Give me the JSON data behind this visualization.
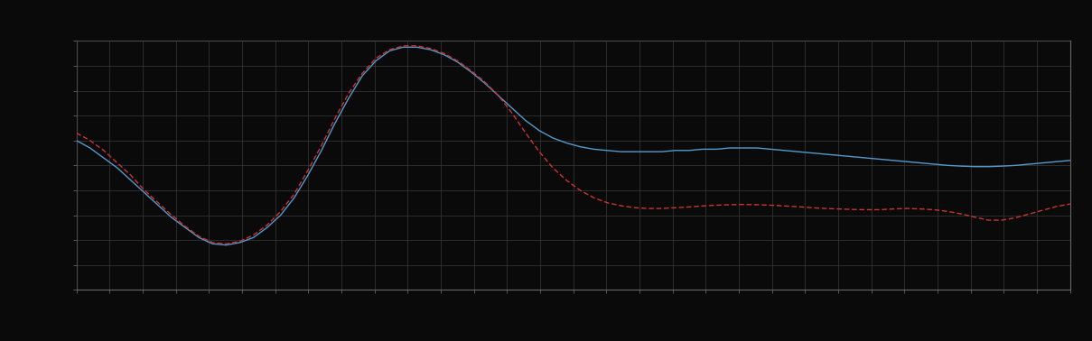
{
  "background_color": "#0a0a0a",
  "plot_bg_color": "#0a0a0a",
  "grid_color": "#3a3a3a",
  "axis_color": "#666666",
  "tick_color": "#666666",
  "figsize": [
    12.09,
    3.78
  ],
  "dpi": 100,
  "xlim": [
    0,
    365
  ],
  "ylim": [
    0,
    10
  ],
  "ytick_count": 10,
  "xticks_count": 30,
  "blue_line_color": "#5599cc",
  "red_line_color": "#cc3333",
  "line_width": 1.0,
  "blue_x": [
    0,
    5,
    10,
    15,
    20,
    25,
    30,
    35,
    40,
    45,
    50,
    55,
    60,
    65,
    70,
    75,
    80,
    85,
    90,
    95,
    100,
    105,
    110,
    115,
    120,
    125,
    130,
    135,
    140,
    145,
    150,
    155,
    160,
    165,
    170,
    175,
    180,
    185,
    190,
    195,
    200,
    205,
    210,
    215,
    220,
    225,
    230,
    235,
    240,
    245,
    250,
    255,
    260,
    265,
    270,
    275,
    280,
    285,
    290,
    295,
    300,
    305,
    310,
    315,
    320,
    325,
    330,
    335,
    340,
    345,
    350,
    355,
    360,
    365
  ],
  "blue_y": [
    6.0,
    5.7,
    5.3,
    4.9,
    4.4,
    3.9,
    3.4,
    2.9,
    2.5,
    2.1,
    1.85,
    1.8,
    1.9,
    2.1,
    2.5,
    3.0,
    3.7,
    4.6,
    5.6,
    6.7,
    7.7,
    8.6,
    9.2,
    9.6,
    9.75,
    9.75,
    9.65,
    9.45,
    9.15,
    8.75,
    8.3,
    7.8,
    7.3,
    6.8,
    6.4,
    6.1,
    5.9,
    5.75,
    5.65,
    5.6,
    5.55,
    5.55,
    5.55,
    5.55,
    5.6,
    5.6,
    5.65,
    5.65,
    5.7,
    5.7,
    5.7,
    5.65,
    5.6,
    5.55,
    5.5,
    5.45,
    5.4,
    5.35,
    5.3,
    5.25,
    5.2,
    5.15,
    5.1,
    5.05,
    5.0,
    4.97,
    4.95,
    4.95,
    4.97,
    5.0,
    5.05,
    5.1,
    5.15,
    5.2
  ],
  "red_x": [
    0,
    5,
    10,
    15,
    20,
    25,
    30,
    35,
    40,
    45,
    50,
    55,
    60,
    65,
    70,
    75,
    80,
    85,
    90,
    95,
    100,
    105,
    110,
    115,
    120,
    125,
    130,
    135,
    140,
    145,
    150,
    155,
    160,
    165,
    170,
    175,
    180,
    185,
    190,
    195,
    200,
    205,
    210,
    215,
    220,
    225,
    230,
    235,
    240,
    245,
    250,
    255,
    260,
    265,
    270,
    275,
    280,
    285,
    290,
    295,
    300,
    305,
    310,
    315,
    320,
    325,
    330,
    335,
    340,
    345,
    350,
    355,
    360,
    365
  ],
  "red_y": [
    6.3,
    6.0,
    5.6,
    5.1,
    4.6,
    4.0,
    3.5,
    3.0,
    2.55,
    2.15,
    1.9,
    1.85,
    1.95,
    2.2,
    2.6,
    3.15,
    3.85,
    4.8,
    5.8,
    6.9,
    7.9,
    8.7,
    9.3,
    9.65,
    9.8,
    9.8,
    9.7,
    9.5,
    9.2,
    8.8,
    8.35,
    7.8,
    7.1,
    6.3,
    5.55,
    4.9,
    4.4,
    4.0,
    3.7,
    3.5,
    3.38,
    3.3,
    3.27,
    3.27,
    3.3,
    3.33,
    3.37,
    3.4,
    3.42,
    3.43,
    3.42,
    3.4,
    3.37,
    3.34,
    3.3,
    3.27,
    3.25,
    3.23,
    3.22,
    3.22,
    3.25,
    3.27,
    3.25,
    3.22,
    3.15,
    3.05,
    2.92,
    2.8,
    2.8,
    2.9,
    3.05,
    3.2,
    3.35,
    3.45
  ]
}
